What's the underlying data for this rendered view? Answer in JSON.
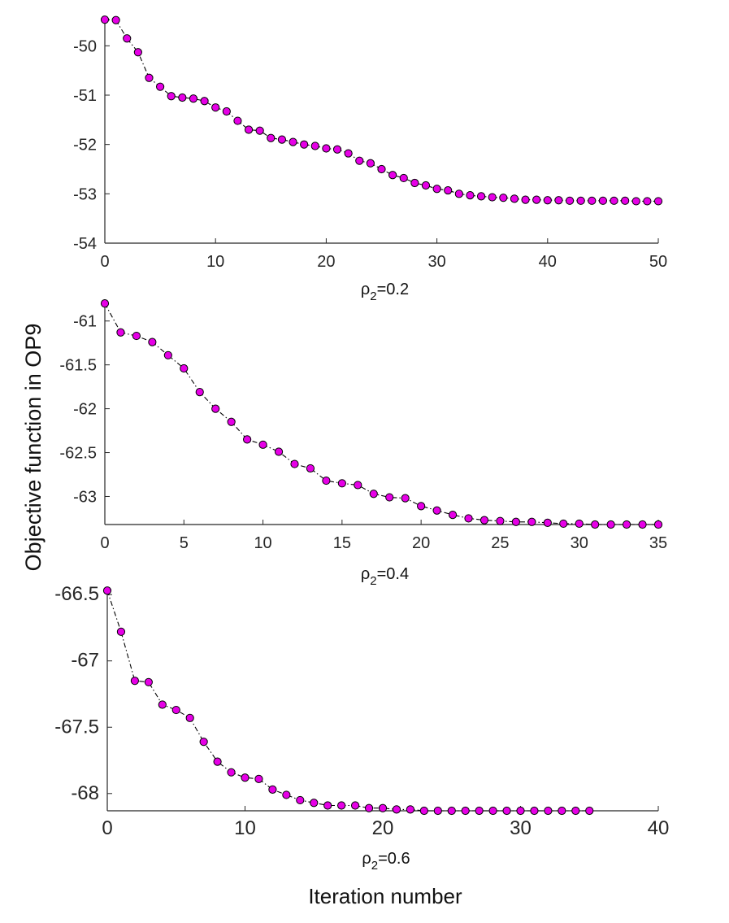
{
  "figure": {
    "ylabel": "Objective function in OP9",
    "xlabel": "Iteration number"
  },
  "chart_data": [
    {
      "type": "line",
      "caption": "0.2",
      "caption_symbol": "ρ",
      "caption_sub": "2",
      "caption_eq": "=",
      "marker": "circle",
      "marker_color": "#e600e6",
      "line_style": "dash-dot",
      "xlim": [
        0,
        50
      ],
      "ylim": [
        -54,
        -49.5
      ],
      "xticks": [
        0,
        10,
        20,
        30,
        40,
        50
      ],
      "yticks": [
        -54,
        -53,
        -52,
        -51,
        -50
      ],
      "x": [
        0,
        1,
        2,
        3,
        4,
        5,
        6,
        7,
        8,
        9,
        10,
        11,
        12,
        13,
        14,
        15,
        16,
        17,
        18,
        19,
        20,
        21,
        22,
        23,
        24,
        25,
        26,
        27,
        28,
        29,
        30,
        31,
        32,
        33,
        34,
        35,
        36,
        37,
        38,
        39,
        40,
        41,
        42,
        43,
        44,
        45,
        46,
        47,
        48,
        49,
        50
      ],
      "values": [
        -49.47,
        -49.48,
        -49.85,
        -50.13,
        -50.65,
        -50.83,
        -51.02,
        -51.05,
        -51.07,
        -51.12,
        -51.25,
        -51.33,
        -51.52,
        -51.7,
        -51.72,
        -51.87,
        -51.9,
        -51.95,
        -52.0,
        -52.03,
        -52.08,
        -52.1,
        -52.18,
        -52.33,
        -52.38,
        -52.5,
        -52.62,
        -52.68,
        -52.78,
        -52.83,
        -52.9,
        -52.93,
        -53.0,
        -53.03,
        -53.05,
        -53.07,
        -53.08,
        -53.1,
        -53.12,
        -53.12,
        -53.13,
        -53.13,
        -53.14,
        -53.14,
        -53.14,
        -53.14,
        -53.14,
        -53.14,
        -53.15,
        -53.15,
        -53.15
      ]
    },
    {
      "type": "line",
      "caption": "0.4",
      "caption_symbol": "ρ",
      "caption_sub": "2",
      "caption_eq": "=",
      "marker": "circle",
      "marker_color": "#e600e6",
      "line_style": "dash-dot",
      "xlim": [
        0,
        35
      ],
      "ylim": [
        -63.32,
        -60.78
      ],
      "xticks": [
        0,
        5,
        10,
        15,
        20,
        25,
        30,
        35
      ],
      "yticks": [
        -63,
        -62.5,
        -62,
        -61.5,
        -61
      ],
      "x": [
        0,
        1,
        2,
        3,
        4,
        5,
        6,
        7,
        8,
        9,
        10,
        11,
        12,
        13,
        14,
        15,
        16,
        17,
        18,
        19,
        20,
        21,
        22,
        23,
        24,
        25,
        26,
        27,
        28,
        29,
        30,
        31,
        32,
        33,
        34,
        35
      ],
      "values": [
        -60.8,
        -61.13,
        -61.17,
        -61.24,
        -61.39,
        -61.54,
        -61.81,
        -62.0,
        -62.15,
        -62.35,
        -62.41,
        -62.49,
        -62.63,
        -62.68,
        -62.82,
        -62.85,
        -62.87,
        -62.97,
        -63.01,
        -63.02,
        -63.11,
        -63.16,
        -63.21,
        -63.25,
        -63.27,
        -63.28,
        -63.29,
        -63.29,
        -63.3,
        -63.31,
        -63.31,
        -63.32,
        -63.32,
        -63.32,
        -63.32,
        -63.32
      ]
    },
    {
      "type": "line",
      "caption": "0.6",
      "caption_symbol": "ρ",
      "caption_sub": "2",
      "caption_eq": "=",
      "marker": "circle",
      "marker_color": "#e600e6",
      "line_style": "dash-dot",
      "xlim": [
        0,
        40
      ],
      "ylim": [
        -68.13,
        -66.45
      ],
      "xticks": [
        0,
        10,
        20,
        30,
        40
      ],
      "yticks": [
        -68,
        -67.5,
        -67,
        -66.5
      ],
      "x": [
        0,
        1,
        2,
        3,
        4,
        5,
        6,
        7,
        8,
        9,
        10,
        11,
        12,
        13,
        14,
        15,
        16,
        17,
        18,
        19,
        20,
        21,
        22,
        23,
        24,
        25,
        26,
        27,
        28,
        29,
        30,
        31,
        32,
        33,
        34,
        35
      ],
      "values": [
        -66.47,
        -66.78,
        -67.15,
        -67.16,
        -67.33,
        -67.37,
        -67.43,
        -67.61,
        -67.76,
        -67.84,
        -67.88,
        -67.89,
        -67.97,
        -68.01,
        -68.05,
        -68.07,
        -68.09,
        -68.09,
        -68.09,
        -68.11,
        -68.11,
        -68.12,
        -68.12,
        -68.13,
        -68.13,
        -68.13,
        -68.13,
        -68.13,
        -68.13,
        -68.13,
        -68.13,
        -68.13,
        -68.13,
        -68.13,
        -68.13,
        -68.13
      ]
    }
  ]
}
